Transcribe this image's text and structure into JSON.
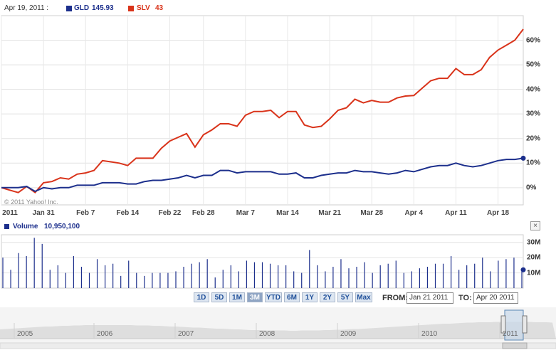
{
  "legend": {
    "date": "Apr 19, 2011 :",
    "gld_label": "GLD",
    "gld_value": "145.93",
    "slv_label": "SLV",
    "slv_value": "43"
  },
  "colors": {
    "gld": "#1c2f8c",
    "slv": "#d9331a",
    "volume": "#1c2f8c"
  },
  "copyright": "© 2011 Yahoo! Inc.",
  "volume_header": {
    "label": "Volume",
    "value": "10,950,100"
  },
  "close_label": "×",
  "range_buttons": [
    "1D",
    "5D",
    "1M",
    "3M",
    "YTD",
    "6M",
    "1Y",
    "2Y",
    "5Y",
    "Max"
  ],
  "active_range": "3M",
  "from_label": "FROM:",
  "from_value": "Jan 21 2011",
  "to_label": "TO:",
  "to_value": "Apr 20 2011",
  "navigator_years": [
    "2005",
    "2006",
    "2007",
    "2008",
    "2009",
    "2010",
    "2011"
  ],
  "chart_data": {
    "type": "line",
    "x_ticks": [
      "2011",
      "Jan 31",
      "Feb 7",
      "Feb 14",
      "Feb 22",
      "Feb 28",
      "Mar 7",
      "Mar 14",
      "Mar 21",
      "Mar 28",
      "Apr 4",
      "Apr 11",
      "Apr 18"
    ],
    "y_ticks": [
      "60%",
      "50%",
      "40%",
      "30%",
      "20%",
      "10%",
      "0%"
    ],
    "ylim": [
      -7,
      70
    ],
    "grid": true,
    "series": [
      {
        "name": "SLV",
        "values": [
          0,
          -1,
          -2,
          0.5,
          -2,
          2,
          2.5,
          4,
          3.5,
          5.5,
          6,
          7,
          11,
          10.5,
          10,
          9,
          12,
          12,
          12,
          16,
          19,
          20.5,
          22,
          16.5,
          21.5,
          23.5,
          26,
          26,
          25,
          29.5,
          31,
          31,
          31.5,
          28.5,
          31,
          31,
          25.5,
          24.5,
          25,
          28,
          31.5,
          32.5,
          36,
          34.5,
          35.5,
          34.8,
          34.8,
          36.5,
          37.3,
          37.5,
          40.5,
          43.5,
          44.5,
          44.5,
          48.5,
          46,
          46,
          48,
          53,
          56,
          58,
          60,
          64.5
        ]
      },
      {
        "name": "GLD",
        "values": [
          0,
          0,
          0,
          0.5,
          -1.5,
          0,
          -0.5,
          0,
          0,
          1,
          1,
          1,
          2,
          2,
          2,
          1.5,
          1.5,
          2.5,
          3,
          3,
          3.5,
          4,
          5,
          4,
          5,
          5,
          7,
          7,
          6,
          6.5,
          6.5,
          6.5,
          6.5,
          5.5,
          5.5,
          6,
          4,
          4,
          5,
          5.5,
          6,
          6,
          7,
          6.5,
          6.5,
          6,
          5.5,
          6,
          7,
          6.5,
          7.5,
          8.5,
          9,
          9,
          10,
          9,
          8.5,
          9,
          10,
          11,
          11.5,
          11.5,
          12
        ]
      }
    ],
    "volume": {
      "y_ticks": [
        "30M",
        "20M",
        "10M"
      ],
      "ylim": [
        0,
        35
      ],
      "values_millions": [
        20,
        12,
        23,
        21,
        33,
        29,
        12,
        15,
        10,
        21,
        14,
        10,
        19,
        15,
        16,
        8,
        18,
        10,
        8,
        10,
        10,
        10,
        11,
        14,
        16,
        17,
        19,
        7,
        12,
        15,
        11,
        18,
        17,
        17,
        16,
        15,
        15,
        11,
        10,
        25,
        15,
        11,
        14,
        19,
        13,
        14,
        17,
        10,
        15,
        16,
        18,
        10,
        11,
        13,
        14,
        16,
        16,
        21,
        12,
        15,
        16,
        20,
        11,
        18,
        19,
        20,
        11
      ]
    }
  }
}
